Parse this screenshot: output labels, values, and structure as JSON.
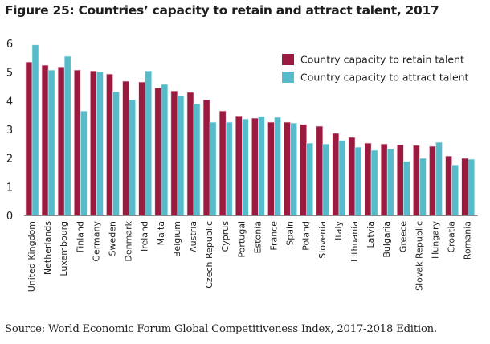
{
  "chart_data": {
    "type": "bar",
    "title": "Figure 25: Countries’ capacity to retain and attract talent, 2017",
    "xlabel": "",
    "ylabel": "",
    "ylim": [
      0,
      6
    ],
    "yticks": [
      0,
      1,
      2,
      3,
      4,
      5,
      6
    ],
    "grid": false,
    "legend_position": "top-right",
    "categories": [
      "United Kingdom",
      "Netherlands",
      "Luxembourg",
      "Finland",
      "Germany",
      "Sweden",
      "Denmark",
      "Ireland",
      "Malta",
      "Belgium",
      "Austria",
      "Czech Republic",
      "Cyprus",
      "Portugal",
      "Estonia",
      "France",
      "Spain",
      "Poland",
      "Slovenia",
      "Italy",
      "Lithuania",
      "Latvia",
      "Bulgaria",
      "Greece",
      "Slovak Republic",
      "Hungary",
      "Croatia",
      "Romania"
    ],
    "series": [
      {
        "name": "Country capacity to retain talent",
        "color": "#9b1b40",
        "values": [
          5.35,
          5.24,
          5.18,
          5.07,
          5.04,
          4.93,
          4.68,
          4.65,
          4.45,
          4.34,
          4.29,
          4.03,
          3.64,
          3.47,
          3.39,
          3.25,
          3.25,
          3.17,
          3.11,
          2.86,
          2.72,
          2.52,
          2.49,
          2.46,
          2.44,
          2.41,
          2.07,
          1.99
        ]
      },
      {
        "name": "Country capacity to attract talent",
        "color": "#56bccc",
        "values": [
          5.95,
          5.07,
          5.55,
          3.64,
          5.01,
          4.31,
          4.03,
          5.04,
          4.57,
          4.17,
          3.89,
          3.25,
          3.25,
          3.36,
          3.45,
          3.42,
          3.22,
          2.52,
          2.49,
          2.61,
          2.38,
          2.27,
          2.32,
          1.88,
          1.99,
          2.55,
          1.76,
          1.96
        ]
      }
    ]
  },
  "source": "Source: World Economic Forum Global Competitiveness Index, 2017-2018 Edition."
}
